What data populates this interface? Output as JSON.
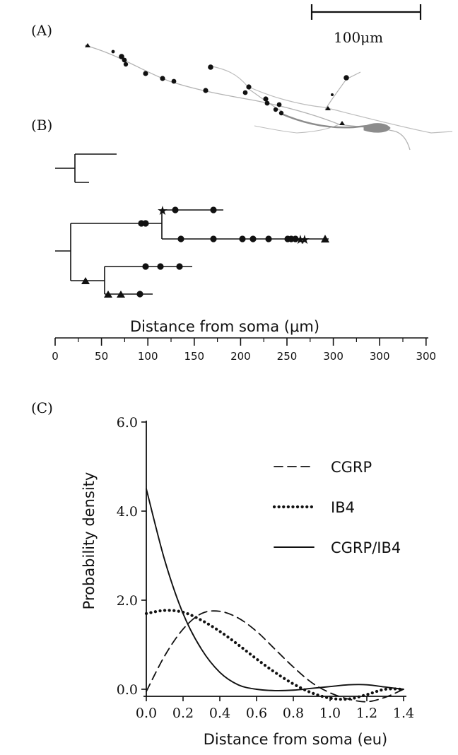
{
  "panels": {
    "a": {
      "label": "(A)",
      "scale_bar": "100μm"
    },
    "b": {
      "label": "(B)"
    },
    "c": {
      "label": "(C)"
    }
  },
  "panel_b_axis": {
    "label": "Distance from soma (μm)",
    "ticks": [
      "0",
      "50",
      "100",
      "150",
      "200",
      "250",
      "300",
      "300",
      "300"
    ]
  },
  "chart_data": {
    "type": "line",
    "title": "",
    "xlabel": "Distance from soma (eu)",
    "ylabel": "Probability density",
    "xlim": [
      0.0,
      1.4
    ],
    "ylim": [
      0.0,
      6.0
    ],
    "xticks": [
      "0.0",
      "0.2",
      "0.4",
      "0.6",
      "0.8",
      "1.0",
      "1.2",
      "1.4"
    ],
    "yticks": [
      "0.0",
      "2.0",
      "4.0",
      "6.0"
    ],
    "legend_position": "top-right",
    "x": [
      0.0,
      0.1,
      0.2,
      0.3,
      0.4,
      0.5,
      0.6,
      0.7,
      0.8,
      0.9,
      1.0,
      1.1,
      1.2,
      1.3,
      1.4
    ],
    "series": [
      {
        "name": "CGRP",
        "style": "dashed",
        "values": [
          -0.05,
          0.75,
          1.35,
          1.7,
          1.75,
          1.6,
          1.3,
          0.9,
          0.5,
          0.15,
          -0.08,
          -0.22,
          -0.28,
          -0.18,
          0.0
        ]
      },
      {
        "name": "IB4",
        "style": "dotted",
        "values": [
          1.7,
          1.77,
          1.73,
          1.55,
          1.3,
          1.0,
          0.68,
          0.38,
          0.12,
          -0.08,
          -0.2,
          -0.22,
          -0.12,
          0.0,
          0.0
        ]
      },
      {
        "name": "CGRP/IB4",
        "style": "solid",
        "values": [
          4.5,
          2.9,
          1.7,
          0.9,
          0.38,
          0.1,
          0.0,
          -0.03,
          -0.02,
          0.02,
          0.06,
          0.1,
          0.1,
          0.05,
          0.0
        ]
      }
    ]
  }
}
